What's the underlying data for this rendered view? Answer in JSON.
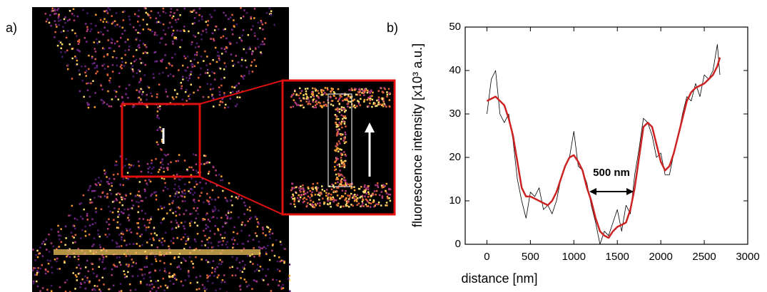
{
  "panel_labels": [
    "a)",
    "b)"
  ],
  "chart_data": {
    "type": "line",
    "xlabel": "distance [nm]",
    "ylabel": "fluorescence intensity [x10³ a.u.]",
    "x": [
      0,
      50,
      100,
      150,
      200,
      250,
      300,
      350,
      400,
      450,
      500,
      550,
      600,
      650,
      700,
      750,
      800,
      850,
      900,
      950,
      1000,
      1050,
      1100,
      1150,
      1200,
      1250,
      1300,
      1350,
      1400,
      1450,
      1500,
      1550,
      1600,
      1650,
      1700,
      1750,
      1800,
      1850,
      1900,
      1950,
      2000,
      2050,
      2100,
      2150,
      2200,
      2250,
      2300,
      2350,
      2400,
      2450,
      2500,
      2550,
      2600,
      2650,
      2680
    ],
    "series": [
      {
        "color": "#000000",
        "width": 0.8,
        "values": [
          30,
          38,
          40,
          30,
          28,
          30,
          24,
          15,
          10,
          6,
          12,
          11,
          13,
          8,
          9,
          7,
          10,
          15,
          18,
          20,
          26,
          18,
          17,
          14,
          9,
          5,
          0,
          3,
          2,
          5,
          8,
          3,
          9,
          7,
          16,
          22,
          29,
          28,
          25,
          20,
          21,
          16,
          16,
          21,
          25,
          30,
          34,
          33,
          37,
          34,
          39,
          38,
          40,
          46,
          39
        ]
      },
      {
        "color": "#cc2222",
        "width": 2.5,
        "values": [
          33,
          33.5,
          34,
          33,
          32,
          29,
          25,
          19,
          13,
          11,
          11,
          10.5,
          10,
          9.5,
          9,
          10,
          12,
          15,
          18,
          20,
          20.5,
          19,
          17,
          13,
          10,
          6,
          3,
          2,
          1.5,
          3,
          4,
          4.5,
          5,
          8,
          13,
          20,
          27,
          28,
          27,
          23,
          19,
          17,
          18,
          21,
          25,
          29,
          33,
          35,
          36,
          36.5,
          37,
          38,
          39,
          41,
          43
        ]
      }
    ],
    "xlim": [
      -250,
      3000
    ],
    "xticks": [
      0,
      500,
      1000,
      1500,
      2000,
      2500,
      3000
    ],
    "ylim": [
      0,
      50
    ],
    "yticks": [
      0,
      10,
      20,
      30,
      40,
      50
    ],
    "annotations": [
      "500 nm"
    ]
  }
}
